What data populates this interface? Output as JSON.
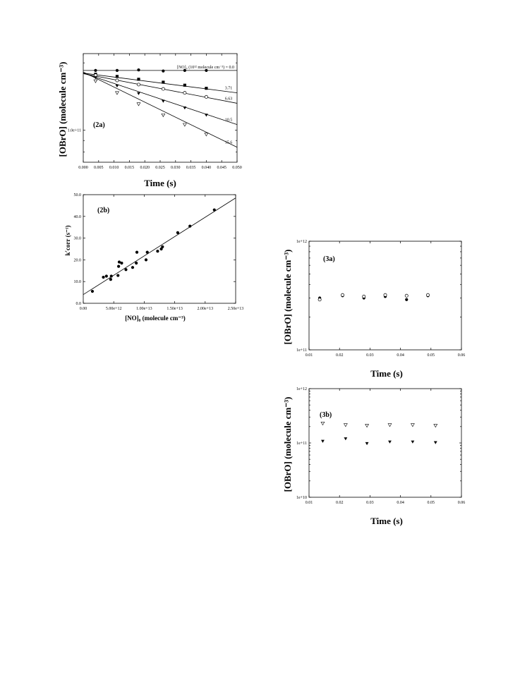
{
  "chart_data": [
    {
      "id": "c2a",
      "panel_label": "(2a)",
      "type": "scatter",
      "xlabel": "Time (s)",
      "ylabel": "[OBrO] (molecule cm⁻³)",
      "xlim": [
        0,
        0.05
      ],
      "xticks": [
        "0.000",
        "0.005",
        "0.010",
        "0.015",
        "0.020",
        "0.025",
        "0.030",
        "0.035",
        "0.040",
        "0.045",
        "0.050"
      ],
      "ylog": true,
      "ylim": [
        0.72,
        2.2
      ],
      "yticks": [
        {
          "value": 1.0,
          "label": "1.0e+11"
        }
      ],
      "legend_title": "[NO]₀ (10¹² molecule cm⁻³) = 0.0",
      "series": [
        {
          "name": "0.0",
          "marker": "circle-filled",
          "points": [
            [
              0.004,
              1.85
            ],
            [
              0.011,
              1.85
            ],
            [
              0.018,
              1.86
            ],
            [
              0.026,
              1.84
            ],
            [
              0.033,
              1.85
            ],
            [
              0.04,
              1.85
            ]
          ],
          "fit": [
            [
              0,
              1.85
            ],
            [
              0.05,
              1.85
            ]
          ]
        },
        {
          "name": "3.71",
          "marker": "square-filled",
          "points": [
            [
              0.004,
              1.78
            ],
            [
              0.011,
              1.74
            ],
            [
              0.018,
              1.69
            ],
            [
              0.026,
              1.64
            ],
            [
              0.033,
              1.59
            ],
            [
              0.04,
              1.54
            ]
          ],
          "fit": [
            [
              0,
              1.8
            ],
            [
              0.05,
              1.47
            ]
          ]
        },
        {
          "name": "6.63",
          "marker": "circle-open",
          "points": [
            [
              0.004,
              1.76
            ],
            [
              0.011,
              1.67
            ],
            [
              0.018,
              1.6
            ],
            [
              0.026,
              1.53
            ],
            [
              0.033,
              1.47
            ],
            [
              0.04,
              1.41
            ]
          ],
          "fit": [
            [
              0,
              1.79
            ],
            [
              0.05,
              1.32
            ]
          ]
        },
        {
          "name": "10.5",
          "marker": "triangle-filled",
          "points": [
            [
              0.004,
              1.72
            ],
            [
              0.011,
              1.58
            ],
            [
              0.018,
              1.46
            ],
            [
              0.026,
              1.35
            ],
            [
              0.033,
              1.26
            ],
            [
              0.04,
              1.17
            ]
          ],
          "fit": [
            [
              0,
              1.8
            ],
            [
              0.05,
              1.06
            ]
          ]
        },
        {
          "name": "15.6",
          "marker": "triangle-open",
          "points": [
            [
              0.004,
              1.66
            ],
            [
              0.011,
              1.47
            ],
            [
              0.018,
              1.31
            ],
            [
              0.026,
              1.17
            ],
            [
              0.033,
              1.06
            ],
            [
              0.04,
              0.96
            ]
          ],
          "fit": [
            [
              0,
              1.82
            ],
            [
              0.05,
              0.84
            ]
          ]
        }
      ]
    },
    {
      "id": "c2b",
      "panel_label": "(2b)",
      "type": "scatter",
      "xlabel": "[NO]₀ (molecule cm⁻³)",
      "ylabel": "k′corr (s⁻¹)",
      "xlim": [
        0,
        25000000000000.0
      ],
      "xticks": [
        {
          "value": 0,
          "label": "0.00"
        },
        {
          "value": 5000000000000.0,
          "label": "5.00e+12"
        },
        {
          "value": 10000000000000.0,
          "label": "1.00e+13"
        },
        {
          "value": 15000000000000.0,
          "label": "1.50e+13"
        },
        {
          "value": 20000000000000.0,
          "label": "2.00e+13"
        },
        {
          "value": 25000000000000.0,
          "label": "2.50e+13"
        }
      ],
      "ylim": [
        0,
        50
      ],
      "yticks": [
        {
          "value": 0,
          "label": "0.0"
        },
        {
          "value": 10,
          "label": "10.0"
        },
        {
          "value": 20,
          "label": "20.0"
        },
        {
          "value": 30,
          "label": "30.0"
        },
        {
          "value": 40,
          "label": "40.0"
        },
        {
          "value": 50,
          "label": "50.0"
        }
      ],
      "points": [
        [
          1500000000000.0,
          5.5
        ],
        [
          3300000000000.0,
          12.0
        ],
        [
          3800000000000.0,
          12.5
        ],
        [
          4500000000000.0,
          11.0
        ],
        [
          4600000000000.0,
          12.5
        ],
        [
          5700000000000.0,
          12.8
        ],
        [
          5800000000000.0,
          17.0
        ],
        [
          5900000000000.0,
          19.0
        ],
        [
          6300000000000.0,
          18.5
        ],
        [
          7000000000000.0,
          15.5
        ],
        [
          8100000000000.0,
          16.5
        ],
        [
          8700000000000.0,
          18.5
        ],
        [
          8800000000000.0,
          23.5
        ],
        [
          10300000000000.0,
          20.0
        ],
        [
          10500000000000.0,
          23.5
        ],
        [
          12200000000000.0,
          24.0
        ],
        [
          12800000000000.0,
          25.0
        ],
        [
          13000000000000.0,
          26.0
        ],
        [
          15500000000000.0,
          32.5
        ],
        [
          17500000000000.0,
          35.5
        ],
        [
          21500000000000.0,
          43.0
        ]
      ],
      "fit": [
        [
          0,
          4.0
        ],
        [
          25000000000000.0,
          48.5
        ]
      ]
    },
    {
      "id": "c3a",
      "panel_label": "(3a)",
      "type": "scatter",
      "xlabel": "Time (s)",
      "ylabel": "[OBrO] (molecule cm⁻³)",
      "xlim": [
        0.01,
        0.06
      ],
      "xticks": [
        {
          "value": 0.01,
          "label": "0.01"
        },
        {
          "value": 0.02,
          "label": "0.02"
        },
        {
          "value": 0.03,
          "label": "0.03"
        },
        {
          "value": 0.04,
          "label": "0.04"
        },
        {
          "value": 0.05,
          "label": "0.05"
        },
        {
          "value": 0.06,
          "label": "0.06"
        }
      ],
      "ylog": true,
      "ylim": [
        100000000000.0,
        1000000000000.0
      ],
      "yticks": [
        {
          "value": 100000000000.0,
          "label": "1e+11"
        },
        {
          "value": 1000000000000.0,
          "label": "1e+12"
        }
      ],
      "series": [
        {
          "name": "",
          "marker": "circle-filled",
          "points": [
            [
              0.0135,
              300000000000.0
            ],
            [
              0.021,
              315000000000.0
            ],
            [
              0.028,
              300000000000.0
            ],
            [
              0.035,
              310000000000.0
            ],
            [
              0.042,
              290000000000.0
            ],
            [
              0.049,
              315000000000.0
            ]
          ]
        },
        {
          "name": "",
          "marker": "circle-open",
          "points": [
            [
              0.0135,
              290000000000.0
            ],
            [
              0.021,
              320000000000.0
            ],
            [
              0.028,
              310000000000.0
            ],
            [
              0.035,
              320000000000.0
            ],
            [
              0.042,
              315000000000.0
            ],
            [
              0.049,
              320000000000.0
            ]
          ]
        }
      ]
    },
    {
      "id": "c3b",
      "panel_label": "(3b)",
      "type": "scatter",
      "xlabel": "Time (s)",
      "ylabel": "[OBrO] (molecule cm⁻³)",
      "xlim": [
        0.01,
        0.06
      ],
      "xticks": [
        {
          "value": 0.01,
          "label": "0.01"
        },
        {
          "value": 0.02,
          "label": "0.02"
        },
        {
          "value": 0.03,
          "label": "0.03"
        },
        {
          "value": 0.04,
          "label": "0.04"
        },
        {
          "value": 0.05,
          "label": "0.05"
        },
        {
          "value": 0.06,
          "label": "0.06"
        }
      ],
      "ylog": true,
      "ylim": [
        10000000000.0,
        1000000000000.0
      ],
      "yticks": [
        {
          "value": 10000000000.0,
          "label": "1e+10"
        },
        {
          "value": 100000000000.0,
          "label": "1e+11"
        },
        {
          "value": 1000000000000.0,
          "label": "1e+12"
        }
      ],
      "series": [
        {
          "name": "",
          "marker": "triangle-open",
          "points": [
            [
              0.0145,
              230000000000.0
            ],
            [
              0.022,
              215000000000.0
            ],
            [
              0.029,
              210000000000.0
            ],
            [
              0.0365,
              215000000000.0
            ],
            [
              0.044,
              215000000000.0
            ],
            [
              0.0515,
              210000000000.0
            ]
          ]
        },
        {
          "name": "",
          "marker": "triangle-filled",
          "points": [
            [
              0.0145,
              108000000000.0
            ],
            [
              0.022,
              120000000000.0
            ],
            [
              0.029,
              98000000000.0
            ],
            [
              0.0365,
              105000000000.0
            ],
            [
              0.044,
              105000000000.0
            ],
            [
              0.0515,
              102000000000.0
            ]
          ]
        }
      ]
    }
  ]
}
